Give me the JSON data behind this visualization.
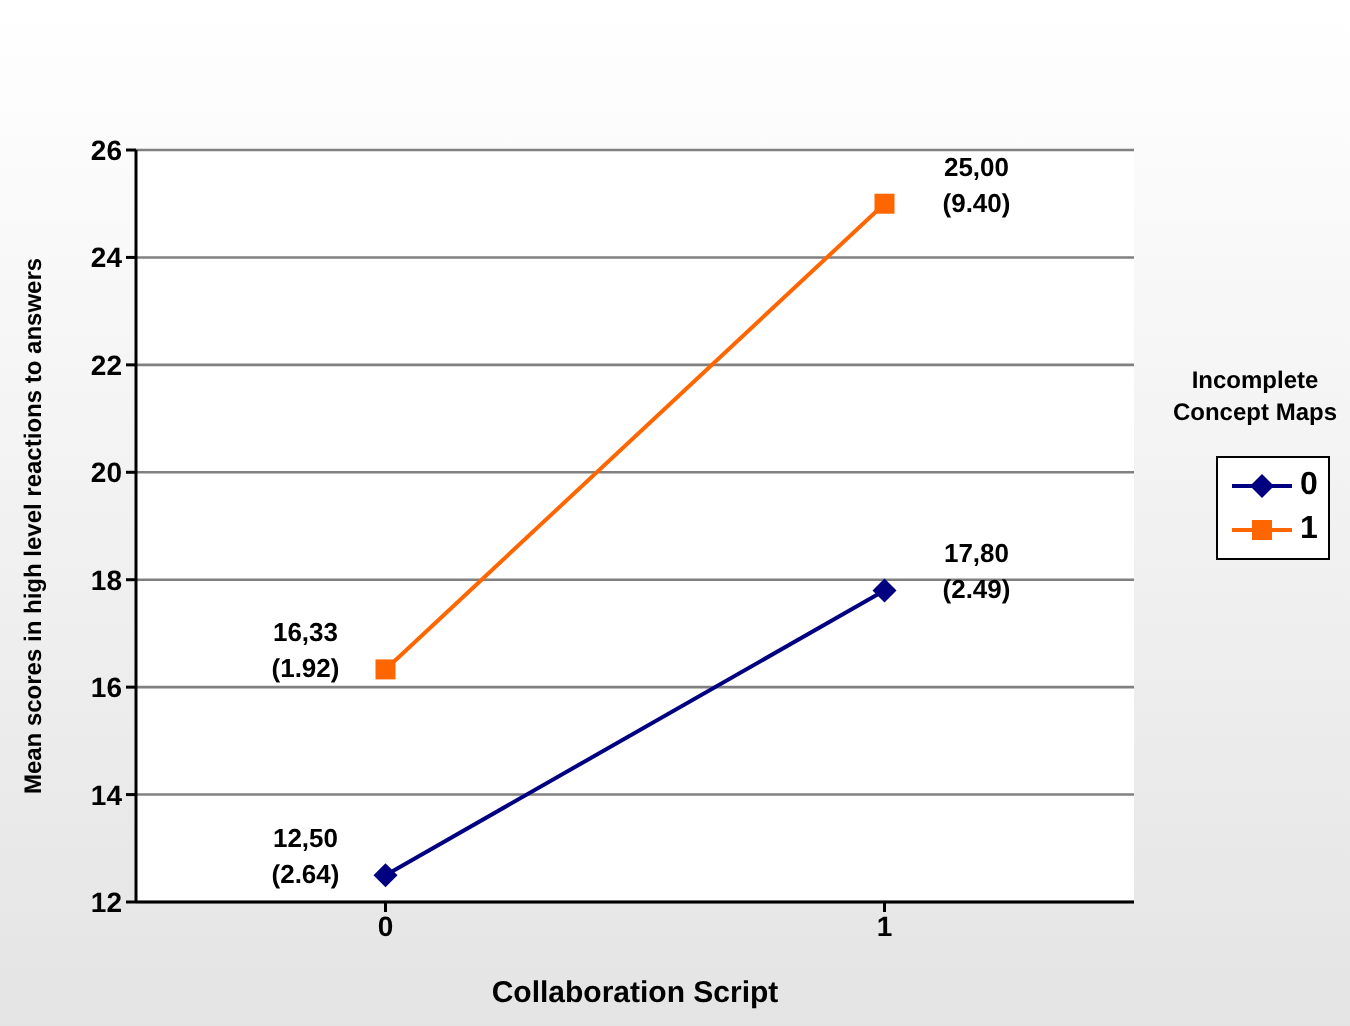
{
  "chart_data": {
    "type": "line",
    "xlabel": "Collaboration Script",
    "ylabel": "Mean scores in high level reactions to answers",
    "legend_title": "Incomplete Concept Maps",
    "categories": [
      "0",
      "1"
    ],
    "series": [
      {
        "name": "0",
        "color": "#000080",
        "marker": "diamond",
        "values": [
          12.5,
          17.8
        ]
      },
      {
        "name": "1",
        "color": "#ff6600",
        "marker": "square",
        "values": [
          16.33,
          25.0
        ]
      }
    ],
    "ylim": [
      12,
      26
    ],
    "yticks": [
      12,
      14,
      16,
      18,
      20,
      22,
      24,
      26
    ],
    "grid": "y",
    "legend": "right",
    "annotations": [
      {
        "text": "12,50\n(2.64)",
        "x": "0",
        "y": 12.5
      },
      {
        "text": "17,80\n(2.49)",
        "x": "1",
        "y": 17.8
      },
      {
        "text": "16,33\n(1.92)",
        "x": "0",
        "y": 16.33
      },
      {
        "text": "25,00\n(9.40)",
        "x": "1",
        "y": 25.0
      }
    ]
  }
}
